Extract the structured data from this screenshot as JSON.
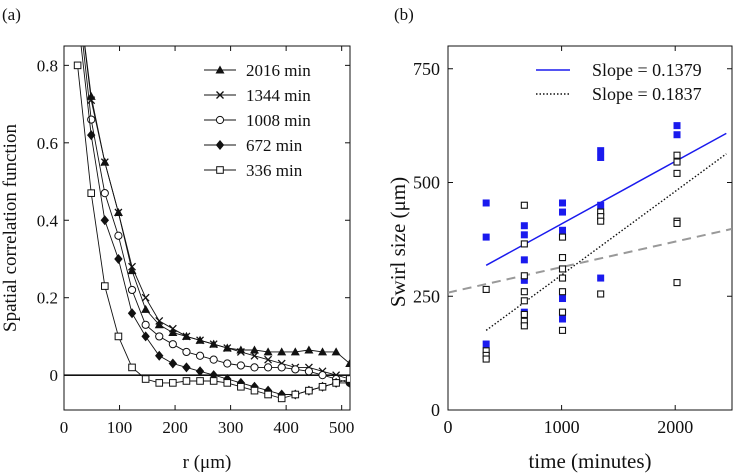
{
  "chart_data": [
    {
      "panel_label": "(a)",
      "type": "line",
      "xlabel": "r (μm)",
      "ylabel": "Spatial correlation function",
      "xlim": [
        0,
        515
      ],
      "ylim": [
        -0.09,
        0.85
      ],
      "xticks": [
        0,
        100,
        200,
        300,
        400,
        500
      ],
      "yticks": [
        0,
        0.2,
        0.4,
        0.6,
        0.8
      ],
      "ytick_labels": [
        "0",
        "0.2",
        "0.4",
        "0.6",
        "0.8"
      ],
      "zero_line": true,
      "series": [
        {
          "name": "2016 min",
          "marker": "triangle",
          "x": [
            24.5,
            49,
            73.5,
            98,
            122.5,
            147,
            171.5,
            196,
            220.5,
            245,
            269.5,
            294,
            318.5,
            343,
            367.5,
            392,
            416.5,
            441,
            465.5,
            490,
            514.5
          ],
          "y": [
            1.0,
            0.72,
            0.55,
            0.42,
            0.27,
            0.17,
            0.13,
            0.11,
            0.1,
            0.09,
            0.08,
            0.07,
            0.065,
            0.065,
            0.06,
            0.06,
            0.06,
            0.065,
            0.06,
            0.06,
            0.03
          ]
        },
        {
          "name": "1344 min",
          "marker": "cross",
          "x": [
            24.5,
            49,
            73.5,
            98,
            122.5,
            147,
            171.5,
            196,
            220.5,
            245,
            269.5,
            294,
            318.5,
            343,
            367.5,
            392,
            416.5,
            441,
            465.5,
            490,
            514.5
          ],
          "y": [
            1.0,
            0.71,
            0.55,
            0.42,
            0.28,
            0.2,
            0.14,
            0.12,
            0.1,
            0.09,
            0.08,
            0.07,
            0.06,
            0.05,
            0.04,
            0.03,
            0.02,
            0.02,
            0.01,
            0.0,
            -0.01
          ]
        },
        {
          "name": "1008 min",
          "marker": "circle",
          "x": [
            24.5,
            49,
            73.5,
            98,
            122.5,
            147,
            171.5,
            196,
            220.5,
            245,
            269.5,
            294,
            318.5,
            343,
            367.5,
            392,
            416.5,
            441,
            465.5,
            490,
            514.5
          ],
          "y": [
            0.98,
            0.66,
            0.47,
            0.36,
            0.22,
            0.13,
            0.1,
            0.08,
            0.06,
            0.05,
            0.04,
            0.03,
            0.025,
            0.02,
            0.02,
            0.02,
            0.015,
            0.01,
            0.0,
            -0.01,
            -0.02
          ]
        },
        {
          "name": "672 min",
          "marker": "diamond",
          "x": [
            24.5,
            49,
            73.5,
            98,
            122.5,
            147,
            171.5,
            196,
            220.5,
            245,
            269.5,
            294,
            318.5,
            343,
            367.5,
            392,
            416.5,
            441,
            465.5,
            490,
            514.5
          ],
          "y": [
            0.93,
            0.62,
            0.4,
            0.3,
            0.16,
            0.1,
            0.05,
            0.03,
            0.02,
            0.01,
            0.0,
            -0.01,
            -0.02,
            -0.03,
            -0.04,
            -0.05,
            -0.05,
            -0.04,
            -0.03,
            -0.02,
            -0.02
          ]
        },
        {
          "name": "336 min",
          "marker": "square",
          "x": [
            24.5,
            49,
            73.5,
            98,
            122.5,
            147,
            171.5,
            196,
            220.5,
            245,
            269.5,
            294,
            318.5,
            343,
            367.5,
            392,
            416.5,
            441,
            465.5,
            490,
            514.5
          ],
          "y": [
            0.8,
            0.47,
            0.23,
            0.1,
            0.02,
            -0.01,
            -0.02,
            -0.02,
            -0.015,
            -0.015,
            -0.015,
            -0.02,
            -0.03,
            -0.04,
            -0.05,
            -0.06,
            -0.05,
            -0.04,
            -0.03,
            -0.02,
            -0.01
          ]
        }
      ]
    },
    {
      "panel_label": "(b)",
      "type": "scatter",
      "xlabel": "time (minutes)",
      "ylabel": "Swirl size (μm)",
      "xlim": [
        0,
        2500
      ],
      "ylim": [
        0,
        800
      ],
      "xticks": [
        0,
        1000,
        2000
      ],
      "yticks": [
        0,
        250,
        500,
        750
      ],
      "series": [
        {
          "name": "filled",
          "marker": "filled-square",
          "color": "#1a1aee",
          "x": [
            336,
            336,
            336,
            672,
            672,
            672,
            672,
            672,
            1008,
            1008,
            1008,
            1008,
            1008,
            1344,
            1344,
            1344,
            1344,
            2016,
            2016
          ],
          "y": [
            455,
            380,
            145,
            405,
            385,
            330,
            285,
            215,
            455,
            435,
            395,
            245,
            200,
            570,
            555,
            450,
            290,
            625,
            605
          ]
        },
        {
          "name": "open",
          "marker": "open-square",
          "color": "#111111",
          "x": [
            336,
            336,
            336,
            336,
            672,
            672,
            672,
            672,
            672,
            672,
            672,
            672,
            1008,
            1008,
            1008,
            1008,
            1008,
            1008,
            1008,
            1344,
            1344,
            1344,
            1344,
            2016,
            2016,
            2016,
            2016,
            2016,
            2016
          ],
          "y": [
            265,
            130,
            120,
            112,
            450,
            365,
            295,
            260,
            240,
            210,
            195,
            185,
            380,
            335,
            310,
            290,
            260,
            215,
            175,
            435,
            425,
            415,
            255,
            560,
            545,
            520,
            415,
            410,
            280
          ]
        }
      ],
      "fit_lines": [
        {
          "label": "Slope = 0.1379",
          "style": "solid",
          "color": "#1a1aee",
          "x": [
            336,
            2450
          ],
          "y": [
            318,
            608
          ]
        },
        {
          "label": "Slope = 0.1837",
          "style": "dotted",
          "color": "#111111",
          "x": [
            336,
            2450
          ],
          "y": [
            175,
            563
          ]
        },
        {
          "label": "",
          "style": "dashed",
          "color": "#999999",
          "x": [
            0,
            2500
          ],
          "y": [
            258,
            398
          ]
        }
      ]
    }
  ]
}
